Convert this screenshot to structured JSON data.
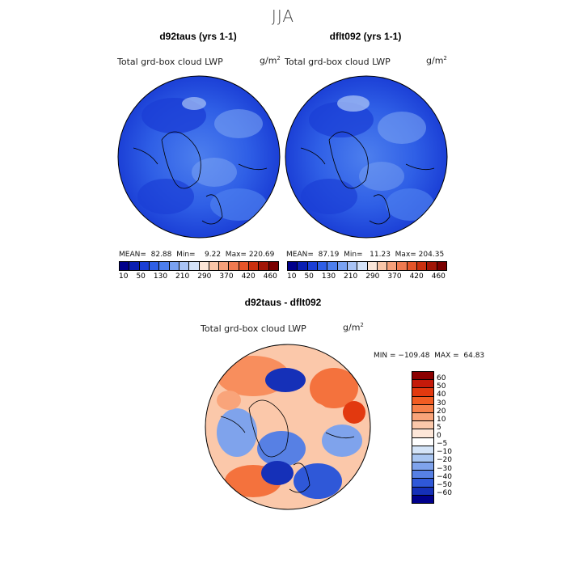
{
  "season": "JJA",
  "panels": [
    {
      "title": "d92taus (yrs 1-1)",
      "variable": "Total grd-box cloud LWP",
      "units": "g/m",
      "units_sup": "2",
      "stats": "MEAN=  82.88  Min=    9.22  Max= 220.69"
    },
    {
      "title": "dflt092 (yrs 1-1)",
      "variable": "Total grd-box cloud LWP",
      "units": "g/m",
      "units_sup": "2",
      "stats": "MEAN=  87.19  Min=   11.23  Max= 204.35"
    }
  ],
  "colorbar_top": {
    "colors": [
      "#00008b",
      "#0a1fb3",
      "#1b3fd6",
      "#2f5fe6",
      "#4d7fee",
      "#7aa2f2",
      "#a9c3f5",
      "#d4e2f8",
      "#fbe6d8",
      "#f9c6a8",
      "#f5a07a",
      "#ef7a50",
      "#e55529",
      "#c9300f",
      "#a11506",
      "#7a0000"
    ],
    "ticks": [
      "10",
      "50",
      "130",
      "210",
      "290",
      "370",
      "420",
      "460"
    ]
  },
  "diff": {
    "title": "d92taus - dflt092",
    "variable": "Total grd-box cloud LWP",
    "units": "g/m",
    "units_sup": "2",
    "minmax": "MIN = −109.48  MAX =  64.83",
    "levels": [
      "60",
      "50",
      "40",
      "30",
      "20",
      "10",
      "5",
      "0",
      "−5",
      "−10",
      "−20",
      "−30",
      "−40",
      "−50",
      "−60"
    ],
    "colors": [
      "#8b0000",
      "#c41a0a",
      "#e2390f",
      "#f25c22",
      "#f7804a",
      "#f9a47a",
      "#fbc8aa",
      "#fde6d8",
      "#ffffff",
      "#d4e4f8",
      "#a9c6f2",
      "#7fa3ec",
      "#5780e4",
      "#2f58d8",
      "#1530b8",
      "#00008b"
    ]
  }
}
